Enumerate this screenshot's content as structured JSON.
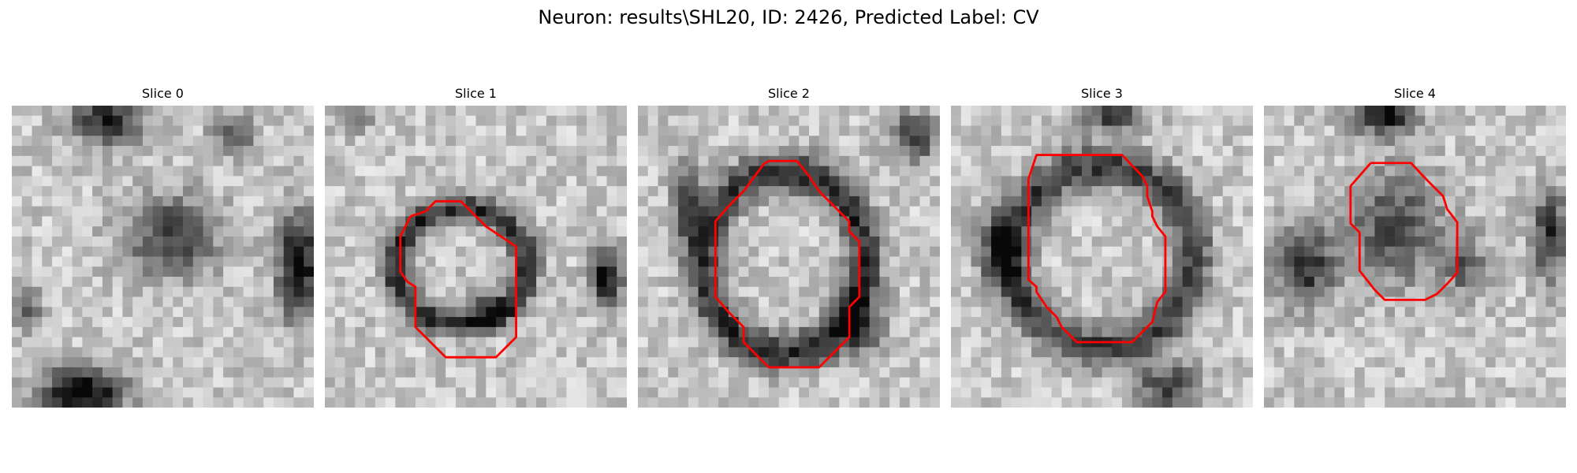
{
  "figure": {
    "title": "Neuron: results\\SHL20, ID: 2426, Predicted Label: CV",
    "contour_color": "#ff0000",
    "colormap": "gray",
    "slices": [
      {
        "title": "Slice 0",
        "has_contour": false,
        "seed": 11
      },
      {
        "title": "Slice 1",
        "has_contour": true,
        "seed": 23
      },
      {
        "title": "Slice 2",
        "has_contour": true,
        "seed": 37
      },
      {
        "title": "Slice 3",
        "has_contour": true,
        "seed": 51
      },
      {
        "title": "Slice 4",
        "has_contour": true,
        "seed": 67
      }
    ]
  }
}
